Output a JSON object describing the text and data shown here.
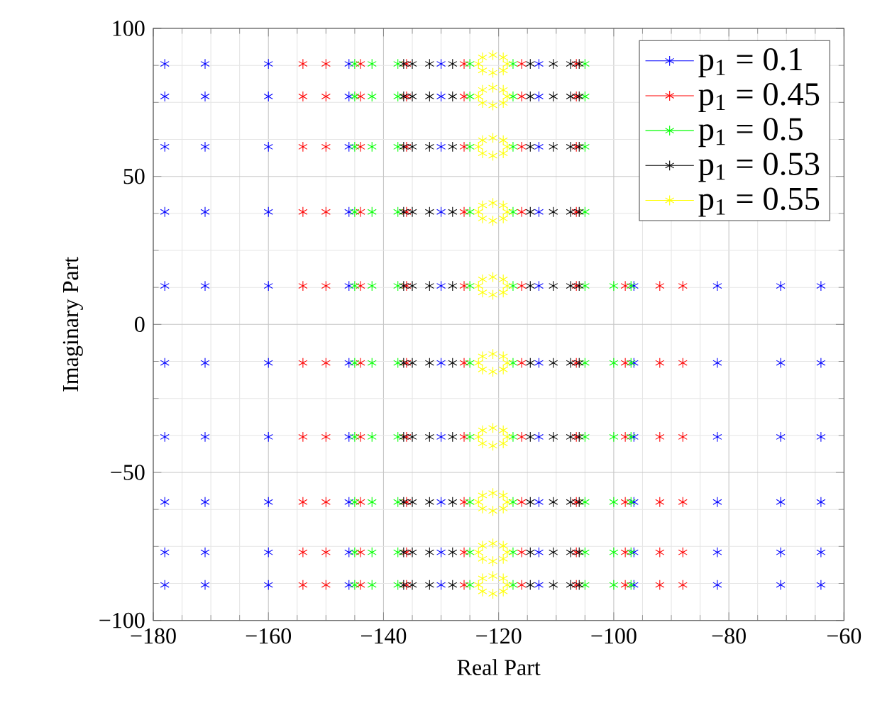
{
  "chart_data": {
    "type": "scatter",
    "xlabel": "Real Part",
    "ylabel": "Imaginary Part",
    "xlim": [
      -180,
      -60
    ],
    "ylim": [
      -100,
      100
    ],
    "xticks": [
      {
        "value": -180,
        "label": "−180"
      },
      {
        "value": -160,
        "label": "−160"
      },
      {
        "value": -140,
        "label": "−140"
      },
      {
        "value": -120,
        "label": "−120"
      },
      {
        "value": -100,
        "label": "−100"
      },
      {
        "value": -80,
        "label": "−80"
      },
      {
        "value": -60,
        "label": "−60"
      }
    ],
    "yticks": [
      {
        "value": -100,
        "label": "−100"
      },
      {
        "value": -50,
        "label": "−50"
      },
      0,
      50,
      100
    ],
    "grid": true,
    "legend": "top right",
    "marker": "cross",
    "series": [
      {
        "name": "p$_{1}$ = 0.1",
        "color": "#0000ff",
        "x": [
          -178,
          -171,
          -160,
          -146,
          -130,
          -113,
          null,
          null,
          null,
          null,
          -178,
          -171,
          -160,
          -146,
          -130,
          -113,
          null,
          null,
          null,
          null,
          -178,
          -171,
          -160,
          -146,
          -130,
          -113,
          null,
          null,
          null,
          null,
          -178,
          -171,
          -160,
          -146,
          -130,
          -113,
          null,
          null,
          null,
          null,
          -178,
          -171,
          -160,
          -146,
          -130,
          -113,
          -96.5,
          -82,
          -71,
          -64,
          -178,
          -171,
          -160,
          -146,
          -130,
          -113,
          -96.5,
          -82,
          -71,
          -64,
          -178,
          -171,
          -160,
          -146,
          -130,
          -113,
          -96.5,
          -82,
          -71,
          -64,
          -178,
          -171,
          -160,
          -146,
          -130,
          -113,
          -96.5,
          -82,
          -71,
          -64,
          -178,
          -171,
          -160,
          -146,
          -130,
          -113,
          -96.5,
          -82,
          -71,
          -64,
          -178,
          -171,
          -160,
          -146,
          -130,
          -113,
          -96.5,
          -82,
          -71,
          -64
        ],
        "values": [
          88,
          88,
          88,
          88,
          88,
          88,
          null,
          null,
          null,
          null,
          77,
          77,
          77,
          77,
          77,
          77,
          null,
          null,
          null,
          null,
          60,
          60,
          60,
          60,
          60,
          60,
          null,
          null,
          null,
          null,
          38,
          38,
          38,
          38,
          38,
          38,
          null,
          null,
          null,
          null,
          13,
          13,
          13,
          13,
          13,
          13,
          13,
          13,
          13,
          13,
          -13,
          -13,
          -13,
          -13,
          -13,
          -13,
          -13,
          -13,
          -13,
          -13,
          -38,
          -38,
          -38,
          -38,
          -38,
          -38,
          -38,
          -38,
          -38,
          -38,
          -60,
          -60,
          -60,
          -60,
          -60,
          -60,
          -60,
          -60,
          -60,
          -60,
          -77,
          -77,
          -77,
          -77,
          -77,
          -77,
          -77,
          -77,
          -77,
          -77,
          -88,
          -88,
          -88,
          -88,
          -88,
          -88,
          -88,
          -88,
          -88,
          -88
        ]
      },
      {
        "name": "p$_{1}$ = 0.45",
        "color": "#ff0000",
        "x": [
          -154,
          -150,
          -144,
          -136,
          -126,
          -116,
          -106.5,
          null,
          null,
          null,
          -154,
          -150,
          -144,
          -136,
          -126,
          -116,
          -106.5,
          null,
          null,
          null,
          -154,
          -150,
          -144,
          -136,
          -126,
          -116,
          -106.5,
          null,
          null,
          null,
          -154,
          -150,
          -144,
          -136,
          -126,
          -116,
          -106.5,
          null,
          null,
          null,
          -154,
          -150,
          -144,
          -136,
          -126,
          -116,
          -106.5,
          -98,
          -92,
          -88,
          -154,
          -150,
          -144,
          -136,
          -126,
          -116,
          -106.5,
          -98,
          -92,
          -88,
          -154,
          -150,
          -144,
          -136,
          -126,
          -116,
          -106.5,
          -98,
          -92,
          -88,
          -154,
          -150,
          -144,
          -136,
          -126,
          -116,
          -106.5,
          -98,
          -92,
          -88,
          -154,
          -150,
          -144,
          -136,
          -126,
          -116,
          -106.5,
          -98,
          -92,
          -88,
          -154,
          -150,
          -144,
          -136,
          -126,
          -116,
          -106.5,
          -98,
          -92,
          -88
        ],
        "values": [
          88,
          88,
          88,
          88,
          88,
          88,
          88,
          null,
          null,
          null,
          77,
          77,
          77,
          77,
          77,
          77,
          77,
          null,
          null,
          null,
          60,
          60,
          60,
          60,
          60,
          60,
          60,
          null,
          null,
          null,
          38,
          38,
          38,
          38,
          38,
          38,
          38,
          null,
          null,
          null,
          13,
          13,
          13,
          13,
          13,
          13,
          13,
          13,
          13,
          13,
          -13,
          -13,
          -13,
          -13,
          -13,
          -13,
          -13,
          -13,
          -13,
          -13,
          -38,
          -38,
          -38,
          -38,
          -38,
          -38,
          -38,
          -38,
          -38,
          -38,
          -60,
          -60,
          -60,
          -60,
          -60,
          -60,
          -60,
          -60,
          -60,
          -60,
          -77,
          -77,
          -77,
          -77,
          -77,
          -77,
          -77,
          -77,
          -77,
          -77,
          -88,
          -88,
          -88,
          -88,
          -88,
          -88,
          -88,
          -88,
          -88,
          -88
        ]
      },
      {
        "name": "p$_{1}$ = 0.5",
        "color": "#00ff00",
        "x": [
          -145,
          -142,
          -137.5,
          -125,
          -117.5,
          -105,
          null,
          null,
          -145,
          -142,
          -137.5,
          -125,
          -117.5,
          -105,
          null,
          null,
          -145,
          -142,
          -137.5,
          -125,
          -117.5,
          -105,
          null,
          null,
          -145,
          -142,
          -137.5,
          -125,
          -117.5,
          -105,
          null,
          null,
          -145,
          -142,
          -137.5,
          -125,
          -117.5,
          -105,
          -100,
          -97,
          -145,
          -142,
          -137.5,
          -125,
          -117.5,
          -105,
          -100,
          -97,
          -145,
          -142,
          -137.5,
          -125,
          -117.5,
          -105,
          -100,
          -97,
          -145,
          -142,
          -137.5,
          -125,
          -117.5,
          -105,
          -100,
          -97,
          -145,
          -142,
          -137.5,
          -125,
          -117.5,
          -105,
          -100,
          -97,
          -145,
          -142,
          -137.5,
          -125,
          -117.5,
          -105,
          -100,
          -97
        ],
        "values": [
          88,
          88,
          88,
          88,
          88,
          88,
          null,
          null,
          77,
          77,
          77,
          77,
          77,
          77,
          null,
          null,
          60,
          60,
          60,
          60,
          60,
          60,
          null,
          null,
          38,
          38,
          38,
          38,
          38,
          38,
          null,
          null,
          13,
          13,
          13,
          13,
          13,
          13,
          13,
          13,
          -13,
          -13,
          -13,
          -13,
          -13,
          -13,
          -13,
          -13,
          -38,
          -38,
          -38,
          -38,
          -38,
          -38,
          -38,
          -38,
          -60,
          -60,
          -60,
          -60,
          -60,
          -60,
          -60,
          -60,
          -77,
          -77,
          -77,
          -77,
          -77,
          -77,
          -77,
          -77,
          -88,
          -88,
          -88,
          -88,
          -88,
          -88,
          -88,
          -88
        ]
      },
      {
        "name": "p$_{1}$ = 0.53",
        "color": "#000000",
        "x": [
          -136.5,
          -135,
          -132,
          -128,
          -114.5,
          -110.5,
          -107.5,
          -106,
          -136.5,
          -135,
          -132,
          -128,
          -114.5,
          -110.5,
          -107.5,
          -106,
          -136.5,
          -135,
          -132,
          -128,
          -114.5,
          -110.5,
          -107.5,
          -106,
          -136.5,
          -135,
          -132,
          -128,
          -114.5,
          -110.5,
          -107.5,
          -106,
          -136.5,
          -135,
          -132,
          -128,
          -114.5,
          -110.5,
          -107.5,
          -106,
          -136.5,
          -135,
          -132,
          -128,
          -114.5,
          -110.5,
          -107.5,
          -106,
          -136.5,
          -135,
          -132,
          -128,
          -114.5,
          -110.5,
          -107.5,
          -106,
          -136.5,
          -135,
          -132,
          -128,
          -114.5,
          -110.5,
          -107.5,
          -106,
          -136.5,
          -135,
          -132,
          -128,
          -114.5,
          -110.5,
          -107.5,
          -106,
          -136.5,
          -135,
          -132,
          -128,
          -114.5,
          -110.5,
          -107.5,
          -106
        ],
        "values": [
          88,
          88,
          88,
          88,
          88,
          88,
          88,
          88,
          77,
          77,
          77,
          77,
          77,
          77,
          77,
          77,
          60,
          60,
          60,
          60,
          60,
          60,
          60,
          60,
          38,
          38,
          38,
          38,
          38,
          38,
          38,
          38,
          13,
          13,
          13,
          13,
          13,
          13,
          13,
          13,
          -13,
          -13,
          -13,
          -13,
          -13,
          -13,
          -13,
          -13,
          -38,
          -38,
          -38,
          -38,
          -38,
          -38,
          -38,
          -38,
          -60,
          -60,
          -60,
          -60,
          -60,
          -60,
          -60,
          -60,
          -77,
          -77,
          -77,
          -77,
          -77,
          -77,
          -77,
          -77,
          -88,
          -88,
          -88,
          -88,
          -88,
          -88,
          -88,
          -88
        ]
      },
      {
        "name": "p$_{1}$ = 0.55",
        "color": "#ffff00",
        "x": [
          -118.5,
          -119.2,
          -121,
          -122.8,
          -123.5,
          -122.8,
          -121,
          -119.2,
          -118.5,
          -119.2,
          -121,
          -122.8,
          -123.5,
          -122.8,
          -121,
          -119.2,
          -118.5,
          -119.2,
          -121,
          -122.8,
          -123.5,
          -122.8,
          -121,
          -119.2,
          -118.5,
          -119.2,
          -121,
          -122.8,
          -123.5,
          -122.8,
          -121,
          -119.2,
          -118.5,
          -119.2,
          -121,
          -122.8,
          -123.5,
          -122.8,
          -121,
          -119.2,
          -118.5,
          -119.2,
          -121,
          -122.8,
          -123.5,
          -122.8,
          -121,
          -119.2,
          -118.5,
          -119.2,
          -121,
          -122.8,
          -123.5,
          -122.8,
          -121,
          -119.2,
          -118.5,
          -119.2,
          -121,
          -122.8,
          -123.5,
          -122.8,
          -121,
          -119.2,
          -118.5,
          -119.2,
          -121,
          -122.8,
          -123.5,
          -122.8,
          -121,
          -119.2,
          -118.5,
          -119.2,
          -121,
          -122.8,
          -123.5,
          -122.8,
          -121,
          -119.2
        ],
        "values": [
          88,
          90.2,
          91,
          90.2,
          88,
          85.8,
          85,
          85.8,
          77,
          79.2,
          80,
          79.2,
          77,
          74.8,
          74,
          74.8,
          60,
          62.2,
          63,
          62.2,
          60,
          57.8,
          57,
          57.8,
          38,
          40.2,
          41,
          40.2,
          38,
          35.8,
          35,
          35.8,
          13,
          15.2,
          16,
          15.2,
          13,
          10.8,
          10,
          10.8,
          -13,
          -10.8,
          -10,
          -10.8,
          -13,
          -15.2,
          -16,
          -15.2,
          -38,
          -35.8,
          -35,
          -35.8,
          -38,
          -40.2,
          -41,
          -40.2,
          -60,
          -57.8,
          -57,
          -57.8,
          -60,
          -62.2,
          -63,
          -62.2,
          -77,
          -74.8,
          -74,
          -74.8,
          -77,
          -79.2,
          -80,
          -79.2,
          -88,
          -85.8,
          -85,
          -85.8,
          -88,
          -90.2,
          -91,
          -90.2
        ]
      }
    ]
  }
}
